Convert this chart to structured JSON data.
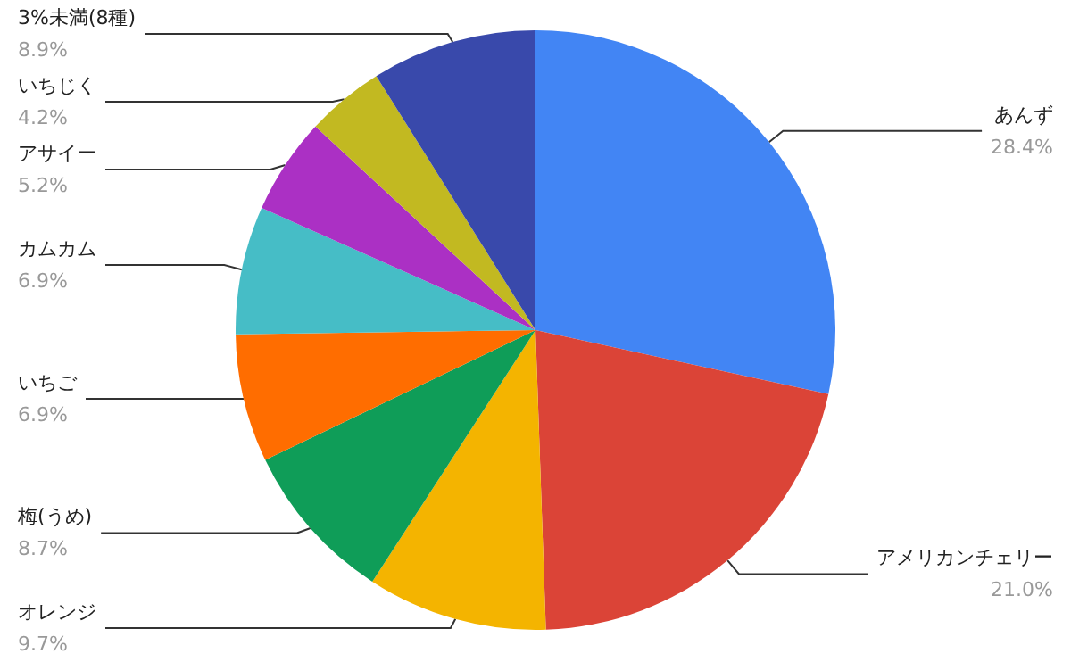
{
  "chart_data": {
    "type": "pie",
    "categories": [
      "あんず",
      "アメリカンチェリー",
      "オレンジ",
      "梅(うめ)",
      "いちご",
      "カムカム",
      "アサイー",
      "いちじく",
      "3%未満(8種)"
    ],
    "values": [
      28.4,
      21.0,
      9.7,
      8.7,
      6.9,
      6.9,
      5.2,
      4.2,
      8.9
    ],
    "value_labels": [
      "28.4%",
      "21.0%",
      "9.7%",
      "8.7%",
      "6.9%",
      "6.9%",
      "5.2%",
      "4.2%",
      "8.9%"
    ],
    "colors": [
      "#4285f4",
      "#db4437",
      "#f4b400",
      "#0f9d58",
      "#ff6d00",
      "#46bdc6",
      "#ab30c4",
      "#c2b921",
      "#3949ab"
    ],
    "legend": false
  }
}
